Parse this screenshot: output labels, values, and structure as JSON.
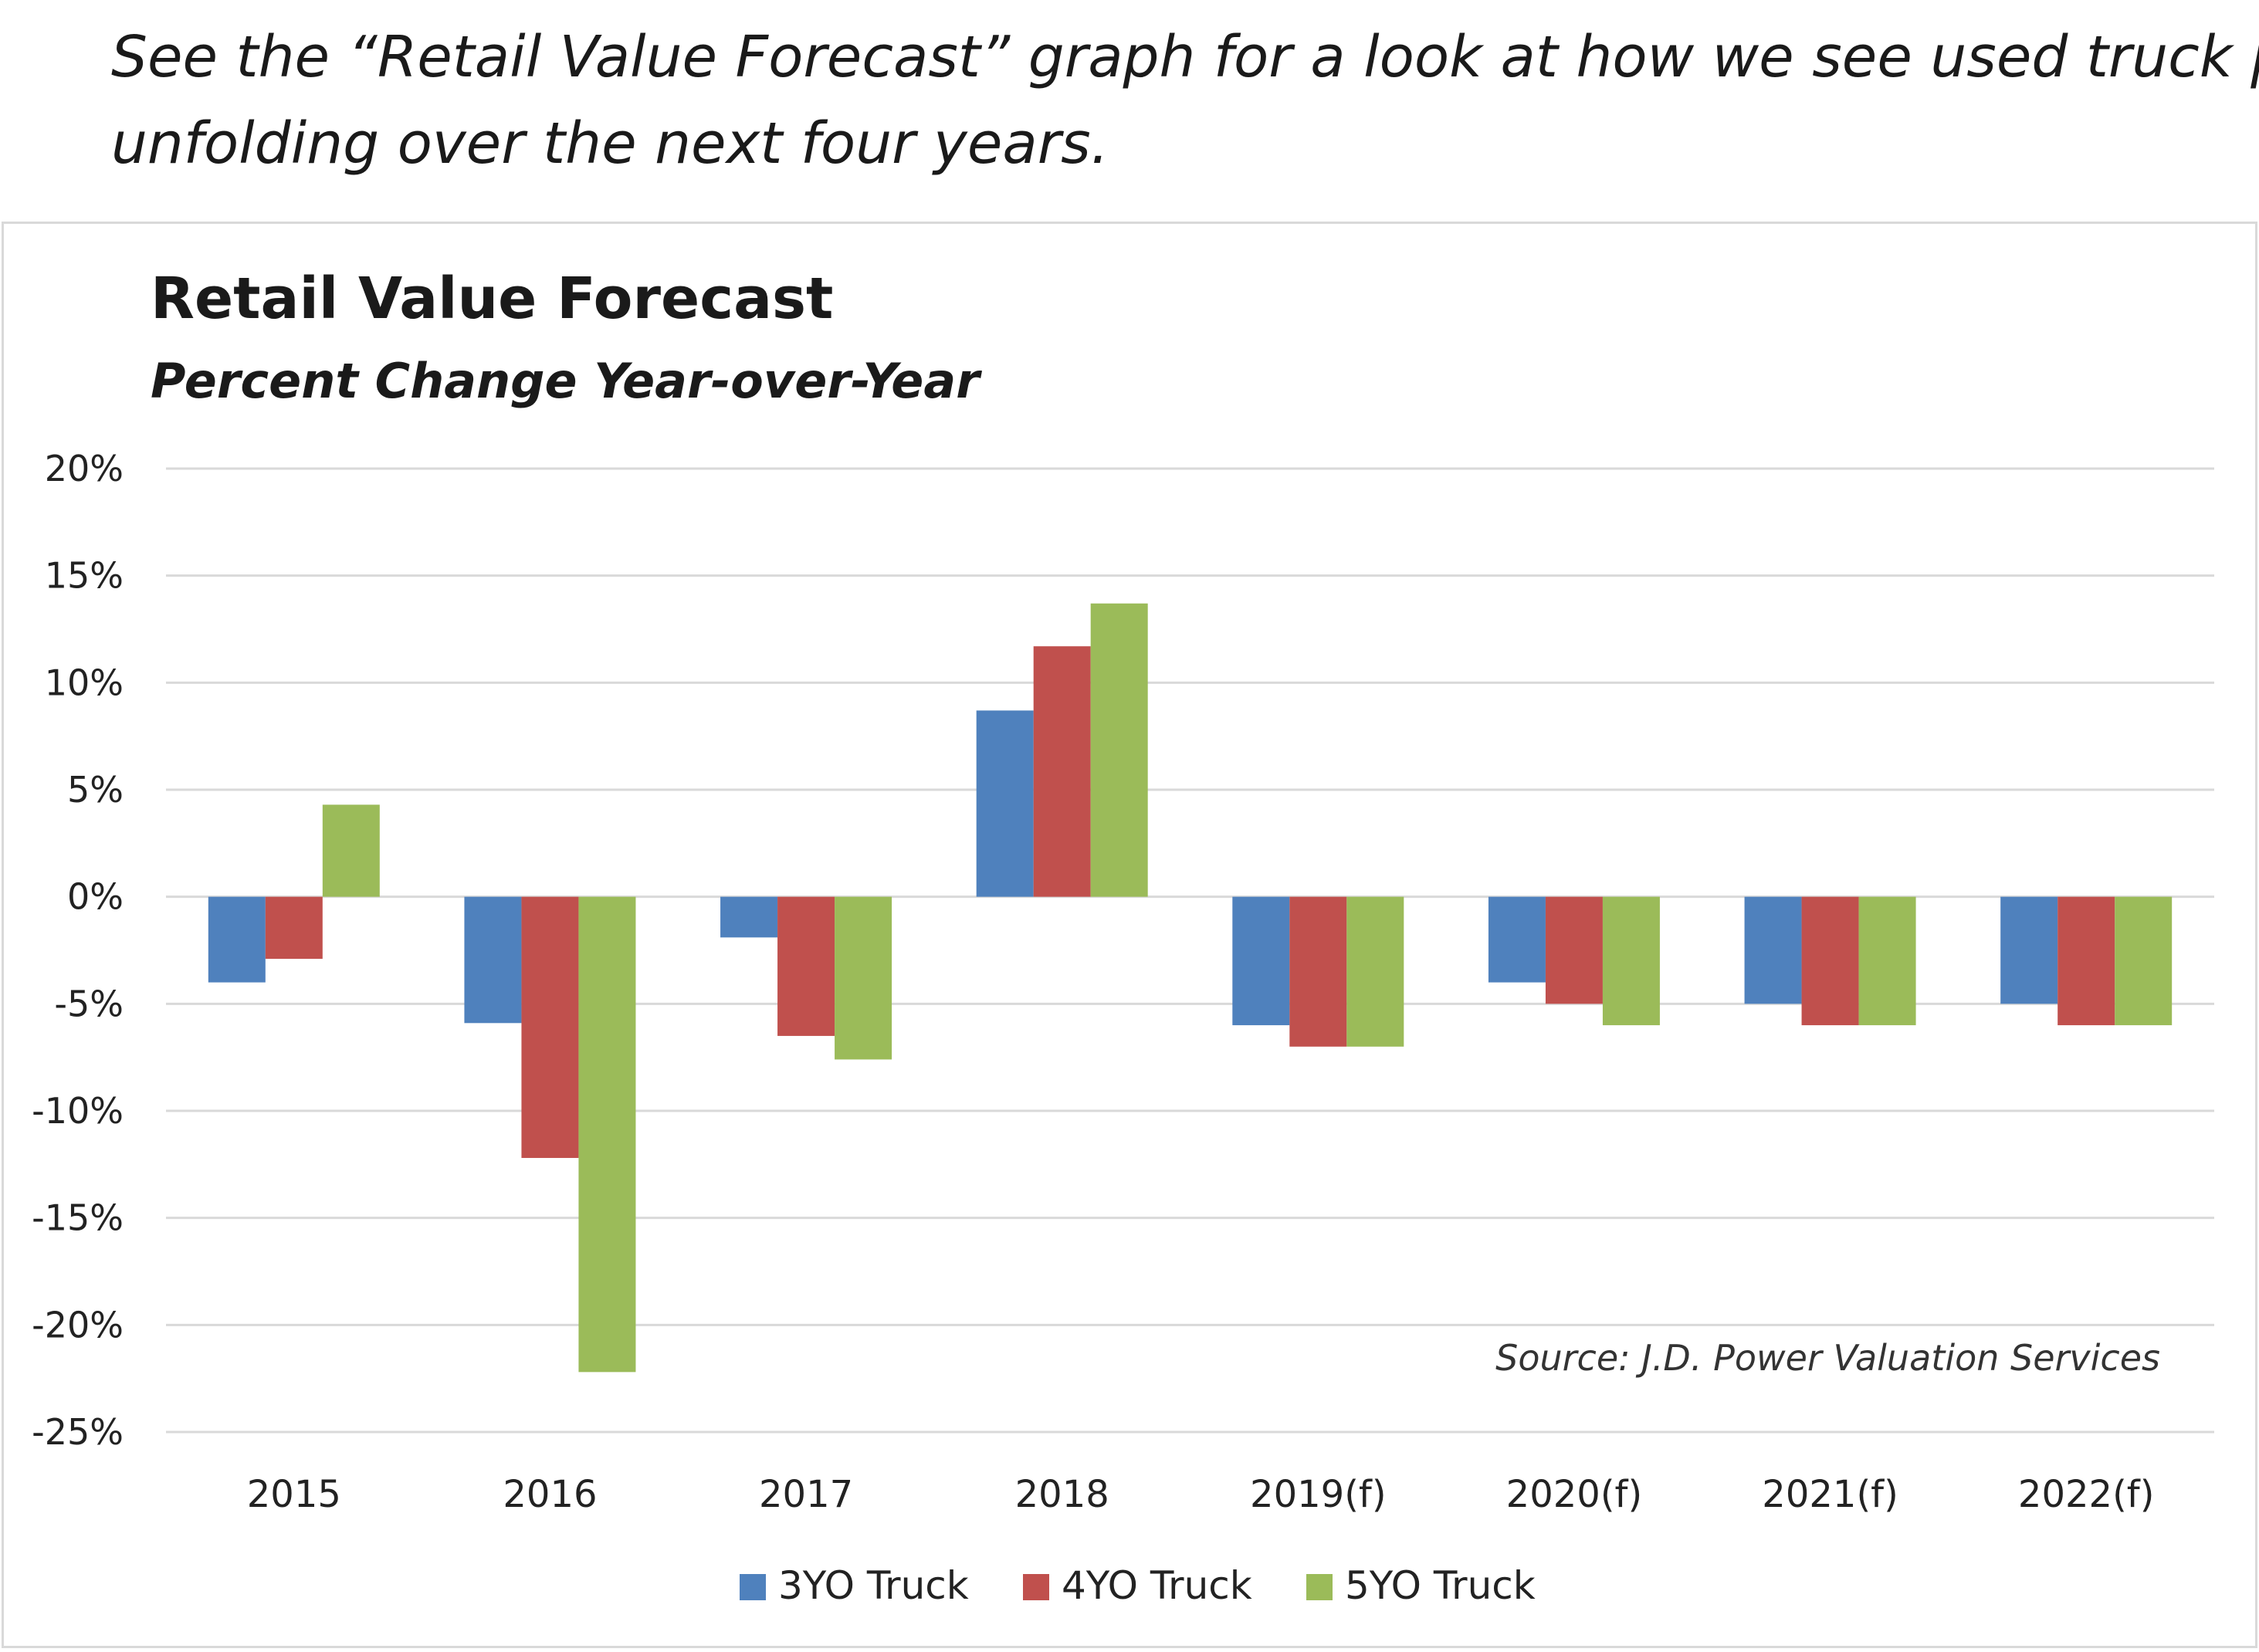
{
  "intro": {
    "line1": "See the “Retail Value Forecast” graph for a look at how we see used truck pri",
    "line2": "unfolding over the next four years."
  },
  "chart_data": {
    "type": "bar",
    "title": "Retail Value Forecast",
    "subtitle": "Percent Change Year-over-Year",
    "source": "Source: J.D. Power Valuation Services",
    "categories": [
      "2015",
      "2016",
      "2017",
      "2018",
      "2019(f)",
      "2020(f)",
      "2021(f)",
      "2022(f)"
    ],
    "series": [
      {
        "name": "3YO Truck",
        "color": "#4f81bd",
        "values": [
          -4.0,
          -5.9,
          -1.9,
          8.7,
          -6.0,
          -4.0,
          -5.0,
          -5.0
        ]
      },
      {
        "name": "4YO Truck",
        "color": "#c0504d",
        "values": [
          -2.9,
          -12.2,
          -6.5,
          11.7,
          -7.0,
          -5.0,
          -6.0,
          -6.0
        ]
      },
      {
        "name": "5YO Truck",
        "color": "#9bbb59",
        "values": [
          4.3,
          -22.2,
          -7.6,
          13.7,
          -7.0,
          -6.0,
          -6.0,
          -6.0
        ]
      }
    ],
    "yticks": [
      "20%",
      "15%",
      "10%",
      "5%",
      "0%",
      "-5%",
      "-10%",
      "-15%",
      "-20%",
      "-25%"
    ],
    "ylim": [
      -25,
      20
    ],
    "grid": true,
    "legend_position": "bottom"
  }
}
